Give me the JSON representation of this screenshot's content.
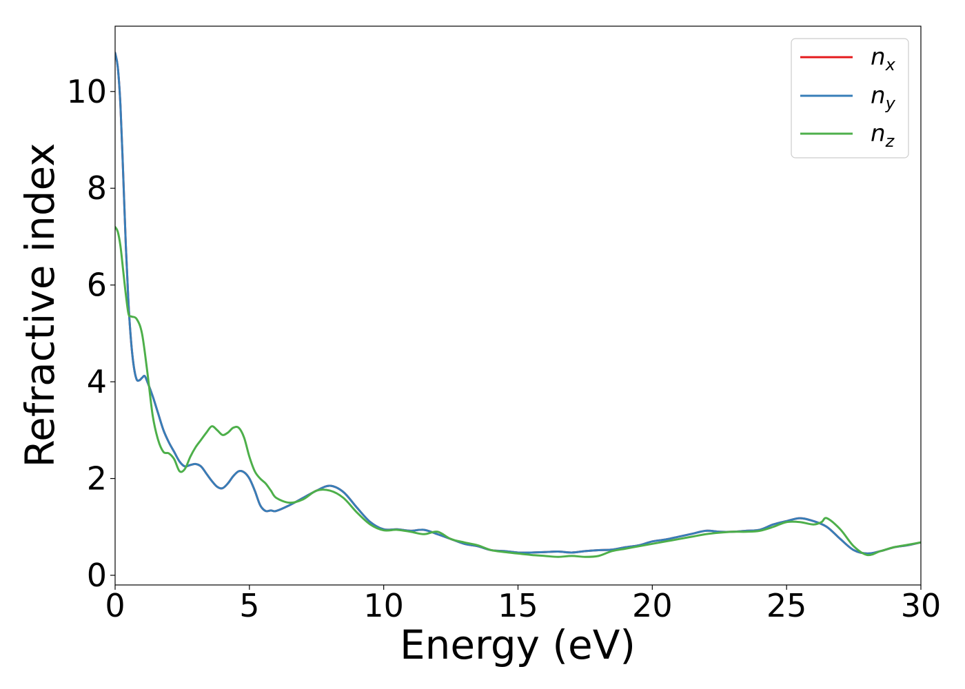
{
  "chart_data": {
    "type": "line",
    "xlabel": "Energy (eV)",
    "ylabel": "Refractive index",
    "xlim": [
      0,
      30
    ],
    "ylim": [
      -0.2,
      11.35
    ],
    "xticks": [
      0,
      5,
      10,
      15,
      20,
      25,
      30
    ],
    "yticks": [
      0,
      2,
      4,
      6,
      8,
      10
    ],
    "grid": false,
    "legend_position": "top-right",
    "series": [
      {
        "name": "n",
        "sub": "x",
        "color": "#e41a1c",
        "x": [
          0,
          0.1,
          0.2,
          0.3,
          0.4,
          0.5,
          0.6,
          0.7,
          0.8,
          0.9,
          1.0,
          1.1,
          1.2,
          1.4,
          1.6,
          1.8,
          2.0,
          2.2,
          2.4,
          2.6,
          2.8,
          3.0,
          3.2,
          3.4,
          3.6,
          3.8,
          4.0,
          4.2,
          4.4,
          4.6,
          4.8,
          5.0,
          5.2,
          5.4,
          5.6,
          5.8,
          6.0,
          6.5,
          7.0,
          7.5,
          8.0,
          8.5,
          9.0,
          9.5,
          10.0,
          10.5,
          11.0,
          11.5,
          12.0,
          12.5,
          13.0,
          13.5,
          14.0,
          14.5,
          15.0,
          15.5,
          16.0,
          16.5,
          17.0,
          17.5,
          18.0,
          18.5,
          19.0,
          19.5,
          20.0,
          20.5,
          21.0,
          21.5,
          22.0,
          22.5,
          23.0,
          23.5,
          24.0,
          24.5,
          25.0,
          25.5,
          26.0,
          26.5,
          27.0,
          27.5,
          28.0,
          28.5,
          29.0,
          29.5,
          30.0
        ],
        "y": [
          10.8,
          10.5,
          9.7,
          8.3,
          6.8,
          5.6,
          4.8,
          4.3,
          4.05,
          4.03,
          4.08,
          4.12,
          4.0,
          3.7,
          3.35,
          3.0,
          2.75,
          2.55,
          2.35,
          2.25,
          2.28,
          2.3,
          2.25,
          2.1,
          1.95,
          1.83,
          1.8,
          1.9,
          2.05,
          2.15,
          2.13,
          2.0,
          1.75,
          1.45,
          1.33,
          1.34,
          1.33,
          1.45,
          1.6,
          1.75,
          1.85,
          1.72,
          1.4,
          1.1,
          0.95,
          0.95,
          0.92,
          0.94,
          0.85,
          0.75,
          0.65,
          0.6,
          0.52,
          0.5,
          0.47,
          0.47,
          0.48,
          0.49,
          0.47,
          0.5,
          0.52,
          0.53,
          0.58,
          0.62,
          0.7,
          0.74,
          0.8,
          0.86,
          0.92,
          0.9,
          0.9,
          0.92,
          0.94,
          1.05,
          1.12,
          1.18,
          1.12,
          1.0,
          0.75,
          0.52,
          0.45,
          0.5,
          0.58,
          0.62,
          0.68
        ]
      },
      {
        "name": "n",
        "sub": "y",
        "color": "#377eb8",
        "x": [
          0,
          0.1,
          0.2,
          0.3,
          0.4,
          0.5,
          0.6,
          0.7,
          0.8,
          0.9,
          1.0,
          1.1,
          1.2,
          1.4,
          1.6,
          1.8,
          2.0,
          2.2,
          2.4,
          2.6,
          2.8,
          3.0,
          3.2,
          3.4,
          3.6,
          3.8,
          4.0,
          4.2,
          4.4,
          4.6,
          4.8,
          5.0,
          5.2,
          5.4,
          5.6,
          5.8,
          6.0,
          6.5,
          7.0,
          7.5,
          8.0,
          8.5,
          9.0,
          9.5,
          10.0,
          10.5,
          11.0,
          11.5,
          12.0,
          12.5,
          13.0,
          13.5,
          14.0,
          14.5,
          15.0,
          15.5,
          16.0,
          16.5,
          17.0,
          17.5,
          18.0,
          18.5,
          19.0,
          19.5,
          20.0,
          20.5,
          21.0,
          21.5,
          22.0,
          22.5,
          23.0,
          23.5,
          24.0,
          24.5,
          25.0,
          25.5,
          26.0,
          26.5,
          27.0,
          27.5,
          28.0,
          28.5,
          29.0,
          29.5,
          30.0
        ],
        "y": [
          10.8,
          10.5,
          9.7,
          8.3,
          6.8,
          5.6,
          4.8,
          4.3,
          4.05,
          4.03,
          4.08,
          4.12,
          4.0,
          3.7,
          3.35,
          3.0,
          2.75,
          2.55,
          2.35,
          2.25,
          2.28,
          2.3,
          2.25,
          2.1,
          1.95,
          1.83,
          1.8,
          1.9,
          2.05,
          2.15,
          2.13,
          2.0,
          1.75,
          1.45,
          1.33,
          1.34,
          1.33,
          1.45,
          1.6,
          1.75,
          1.85,
          1.72,
          1.4,
          1.1,
          0.95,
          0.95,
          0.92,
          0.94,
          0.85,
          0.75,
          0.65,
          0.6,
          0.52,
          0.5,
          0.47,
          0.47,
          0.48,
          0.49,
          0.47,
          0.5,
          0.52,
          0.53,
          0.58,
          0.62,
          0.7,
          0.74,
          0.8,
          0.86,
          0.92,
          0.9,
          0.9,
          0.92,
          0.94,
          1.05,
          1.12,
          1.18,
          1.12,
          1.0,
          0.75,
          0.52,
          0.45,
          0.5,
          0.58,
          0.62,
          0.68
        ]
      },
      {
        "name": "n",
        "sub": "z",
        "color": "#4daf4a",
        "x": [
          0,
          0.1,
          0.2,
          0.3,
          0.4,
          0.5,
          0.6,
          0.8,
          1.0,
          1.2,
          1.4,
          1.6,
          1.8,
          2.0,
          2.2,
          2.4,
          2.6,
          2.8,
          3.0,
          3.2,
          3.4,
          3.6,
          3.8,
          4.0,
          4.2,
          4.4,
          4.6,
          4.8,
          5.0,
          5.2,
          5.4,
          5.6,
          5.8,
          6.0,
          6.5,
          7.0,
          7.5,
          8.0,
          8.5,
          9.0,
          9.5,
          10.0,
          10.5,
          11.0,
          11.5,
          12.0,
          12.5,
          13.0,
          13.5,
          14.0,
          14.5,
          15.0,
          15.5,
          16.0,
          16.5,
          17.0,
          17.5,
          18.0,
          18.5,
          19.0,
          19.5,
          20.0,
          20.5,
          21.0,
          21.5,
          22.0,
          22.5,
          23.0,
          23.5,
          24.0,
          24.5,
          25.0,
          25.5,
          26.0,
          26.3,
          26.5,
          27.0,
          27.5,
          28.0,
          28.5,
          29.0,
          29.5,
          30.0
        ],
        "y": [
          7.2,
          7.1,
          6.8,
          6.3,
          5.8,
          5.4,
          5.35,
          5.3,
          5.0,
          4.2,
          3.3,
          2.8,
          2.55,
          2.52,
          2.4,
          2.15,
          2.2,
          2.45,
          2.65,
          2.8,
          2.95,
          3.08,
          3.0,
          2.9,
          2.95,
          3.05,
          3.05,
          2.85,
          2.45,
          2.15,
          2.0,
          1.9,
          1.75,
          1.6,
          1.5,
          1.57,
          1.75,
          1.75,
          1.6,
          1.3,
          1.05,
          0.93,
          0.94,
          0.9,
          0.85,
          0.9,
          0.75,
          0.68,
          0.62,
          0.52,
          0.48,
          0.45,
          0.42,
          0.4,
          0.38,
          0.4,
          0.38,
          0.4,
          0.5,
          0.55,
          0.6,
          0.65,
          0.7,
          0.75,
          0.8,
          0.85,
          0.88,
          0.9,
          0.9,
          0.92,
          1.0,
          1.1,
          1.1,
          1.05,
          1.1,
          1.18,
          0.95,
          0.6,
          0.42,
          0.5,
          0.58,
          0.63,
          0.68
        ]
      }
    ]
  }
}
